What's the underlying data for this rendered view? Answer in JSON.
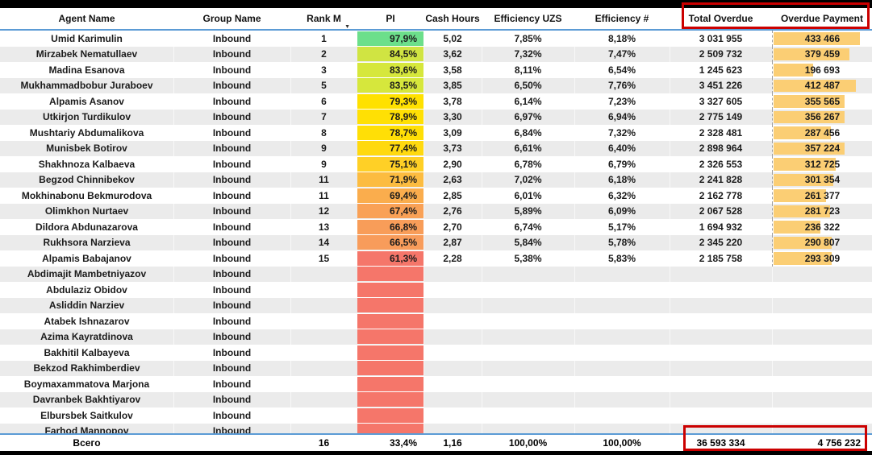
{
  "header": {
    "columns": {
      "agent": "Agent Name",
      "group": "Group Name",
      "rank": "Rank M",
      "pi": "PI",
      "cash": "Cash Hours",
      "eff_uzs": "Efficiency UZS",
      "eff_num": "Efficiency #",
      "total_overdue": "Total Overdue",
      "overdue_payment": "Overdue Payment"
    },
    "sort_icon": "▼"
  },
  "rows": [
    {
      "agent": "Umid Karimulin",
      "group": "Inbound",
      "rank": "1",
      "pi": "97,9%",
      "pi_color": "#6CDF8B",
      "cash": "5,02",
      "eff_uzs": "7,85%",
      "eff_num": "8,18%",
      "total_overdue": "3 031 955",
      "overdue_payment": "433 466"
    },
    {
      "agent": "Mirzabek Nematullaev",
      "group": "Inbound",
      "rank": "2",
      "pi": "84,5%",
      "pi_color": "#D0E442",
      "cash": "3,62",
      "eff_uzs": "7,32%",
      "eff_num": "7,47%",
      "total_overdue": "2 509 732",
      "overdue_payment": "379 459"
    },
    {
      "agent": "Madina Esanova",
      "group": "Inbound",
      "rank": "3",
      "pi": "83,6%",
      "pi_color": "#D6E73C",
      "cash": "3,58",
      "eff_uzs": "8,11%",
      "eff_num": "6,54%",
      "total_overdue": "1 245 623",
      "overdue_payment": "196 693"
    },
    {
      "agent": "Mukhammadbobur Juraboev",
      "group": "Inbound",
      "rank": "5",
      "pi": "83,5%",
      "pi_color": "#D6E73C",
      "cash": "3,85",
      "eff_uzs": "6,50%",
      "eff_num": "7,76%",
      "total_overdue": "3 451 226",
      "overdue_payment": "412 487"
    },
    {
      "agent": "Alpamis Asanov",
      "group": "Inbound",
      "rank": "6",
      "pi": "79,3%",
      "pi_color": "#FFE100",
      "cash": "3,78",
      "eff_uzs": "6,14%",
      "eff_num": "7,23%",
      "total_overdue": "3 327 605",
      "overdue_payment": "355 565"
    },
    {
      "agent": "Utkirjon Turdikulov",
      "group": "Inbound",
      "rank": "7",
      "pi": "78,9%",
      "pi_color": "#FFE004",
      "cash": "3,30",
      "eff_uzs": "6,97%",
      "eff_num": "6,94%",
      "total_overdue": "2 775 149",
      "overdue_payment": "356 267"
    },
    {
      "agent": "Mushtariy Abdumalikova",
      "group": "Inbound",
      "rank": "8",
      "pi": "78,7%",
      "pi_color": "#FFDF06",
      "cash": "3,09",
      "eff_uzs": "6,84%",
      "eff_num": "7,32%",
      "total_overdue": "2 328 481",
      "overdue_payment": "287 456"
    },
    {
      "agent": "Munisbek Botirov",
      "group": "Inbound",
      "rank": "9",
      "pi": "77,4%",
      "pi_color": "#FFD90F",
      "cash": "3,73",
      "eff_uzs": "6,61%",
      "eff_num": "6,40%",
      "total_overdue": "2 898 964",
      "overdue_payment": "357 224"
    },
    {
      "agent": "Shakhnoza Kalbaeva",
      "group": "Inbound",
      "rank": "9",
      "pi": "75,1%",
      "pi_color": "#FFD026",
      "cash": "2,90",
      "eff_uzs": "6,78%",
      "eff_num": "6,79%",
      "total_overdue": "2 326 553",
      "overdue_payment": "312 725"
    },
    {
      "agent": "Begzod Chinnibekov",
      "group": "Inbound",
      "rank": "11",
      "pi": "71,9%",
      "pi_color": "#FCBC40",
      "cash": "2,63",
      "eff_uzs": "7,02%",
      "eff_num": "6,18%",
      "total_overdue": "2 241 828",
      "overdue_payment": "301 354"
    },
    {
      "agent": "Mokhinabonu Bekmurodova",
      "group": "Inbound",
      "rank": "11",
      "pi": "69,4%",
      "pi_color": "#FAAD4D",
      "cash": "2,85",
      "eff_uzs": "6,01%",
      "eff_num": "6,32%",
      "total_overdue": "2 162 778",
      "overdue_payment": "261 377"
    },
    {
      "agent": "Olimkhon Nurtaev",
      "group": "Inbound",
      "rank": "12",
      "pi": "67,4%",
      "pi_color": "#F9A156",
      "cash": "2,76",
      "eff_uzs": "5,89%",
      "eff_num": "6,09%",
      "total_overdue": "2 067 528",
      "overdue_payment": "281 723"
    },
    {
      "agent": "Dildora Abdunazarova",
      "group": "Inbound",
      "rank": "13",
      "pi": "66,8%",
      "pi_color": "#F89D59",
      "cash": "2,70",
      "eff_uzs": "6,74%",
      "eff_num": "5,17%",
      "total_overdue": "1 694 932",
      "overdue_payment": "236 322"
    },
    {
      "agent": "Rukhsora Narzieva",
      "group": "Inbound",
      "rank": "14",
      "pi": "66,5%",
      "pi_color": "#F89C5B",
      "cash": "2,87",
      "eff_uzs": "5,84%",
      "eff_num": "5,78%",
      "total_overdue": "2 345 220",
      "overdue_payment": "290 807"
    },
    {
      "agent": "Alpamis Babajanov",
      "group": "Inbound",
      "rank": "15",
      "pi": "61,3%",
      "pi_color": "#F5766A",
      "cash": "2,28",
      "eff_uzs": "5,38%",
      "eff_num": "5,83%",
      "total_overdue": "2 185 758",
      "overdue_payment": "293 309"
    },
    {
      "agent": "Abdimajit Mambetniyazov",
      "group": "Inbound",
      "rank": "",
      "pi": "",
      "pi_color": "#F5766A",
      "cash": "",
      "eff_uzs": "",
      "eff_num": "",
      "total_overdue": "",
      "overdue_payment": ""
    },
    {
      "agent": "Abdulaziz Obidov",
      "group": "Inbound",
      "rank": "",
      "pi": "",
      "pi_color": "#F5766A",
      "cash": "",
      "eff_uzs": "",
      "eff_num": "",
      "total_overdue": "",
      "overdue_payment": ""
    },
    {
      "agent": "Asliddin Narziev",
      "group": "Inbound",
      "rank": "",
      "pi": "",
      "pi_color": "#F5766A",
      "cash": "",
      "eff_uzs": "",
      "eff_num": "",
      "total_overdue": "",
      "overdue_payment": ""
    },
    {
      "agent": "Atabek Ishnazarov",
      "group": "Inbound",
      "rank": "",
      "pi": "",
      "pi_color": "#F5766A",
      "cash": "",
      "eff_uzs": "",
      "eff_num": "",
      "total_overdue": "",
      "overdue_payment": ""
    },
    {
      "agent": "Azima Kayratdinova",
      "group": "Inbound",
      "rank": "",
      "pi": "",
      "pi_color": "#F5766A",
      "cash": "",
      "eff_uzs": "",
      "eff_num": "",
      "total_overdue": "",
      "overdue_payment": ""
    },
    {
      "agent": "Bakhitil Kalbayeva",
      "group": "Inbound",
      "rank": "",
      "pi": "",
      "pi_color": "#F5766A",
      "cash": "",
      "eff_uzs": "",
      "eff_num": "",
      "total_overdue": "",
      "overdue_payment": ""
    },
    {
      "agent": "Bekzod Rakhimberdiev",
      "group": "Inbound",
      "rank": "",
      "pi": "",
      "pi_color": "#F5766A",
      "cash": "",
      "eff_uzs": "",
      "eff_num": "",
      "total_overdue": "",
      "overdue_payment": ""
    },
    {
      "agent": "Boymaxammatova Marjona",
      "group": "Inbound",
      "rank": "",
      "pi": "",
      "pi_color": "#F5766A",
      "cash": "",
      "eff_uzs": "",
      "eff_num": "",
      "total_overdue": "",
      "overdue_payment": ""
    },
    {
      "agent": "Davranbek Bakhtiyarov",
      "group": "Inbound",
      "rank": "",
      "pi": "",
      "pi_color": "#F5766A",
      "cash": "",
      "eff_uzs": "",
      "eff_num": "",
      "total_overdue": "",
      "overdue_payment": ""
    },
    {
      "agent": "Elbursbek Saitkulov",
      "group": "Inbound",
      "rank": "",
      "pi": "",
      "pi_color": "#F5766A",
      "cash": "",
      "eff_uzs": "",
      "eff_num": "",
      "total_overdue": "",
      "overdue_payment": ""
    },
    {
      "agent": "Farhod Mannopov",
      "group": "Inbound",
      "rank": "",
      "pi": "",
      "pi_color": "#F5766A",
      "cash": "",
      "eff_uzs": "",
      "eff_num": "",
      "total_overdue": "",
      "overdue_payment": ""
    }
  ],
  "total_row": {
    "label": "Всего",
    "rank": "16",
    "pi": "33,4%",
    "cash": "1,16",
    "eff_uzs": "100,00%",
    "eff_num": "100,00%",
    "total_overdue": "36 593 334",
    "overdue_payment": "4 756 232"
  },
  "colors": {
    "data_bar": "#FBCE74",
    "annotation_box": "#CB0000",
    "divider_line": "#5B9BD5",
    "row_stripe": "#EBEBEB",
    "pi_empty": "#F5766A"
  },
  "chart_data": {
    "type": "table",
    "note": "Agent performance table with PI color scale and Overdue Payment data bars",
    "bar_column": "overdue_payment",
    "bar_max_value": 433466
  }
}
